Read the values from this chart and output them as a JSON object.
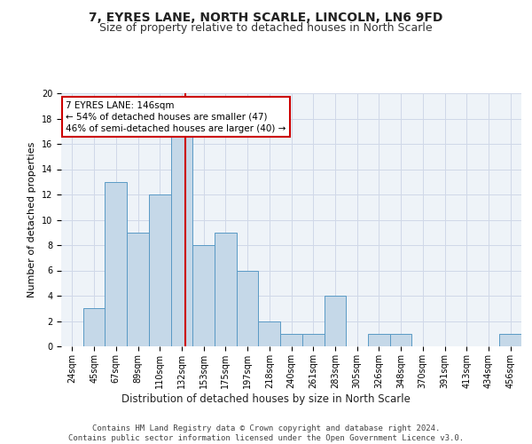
{
  "title1": "7, EYRES LANE, NORTH SCARLE, LINCOLN, LN6 9FD",
  "title2": "Size of property relative to detached houses in North Scarle",
  "xlabel": "Distribution of detached houses by size in North Scarle",
  "ylabel": "Number of detached properties",
  "categories": [
    "24sqm",
    "45sqm",
    "67sqm",
    "89sqm",
    "110sqm",
    "132sqm",
    "153sqm",
    "175sqm",
    "197sqm",
    "218sqm",
    "240sqm",
    "261sqm",
    "283sqm",
    "305sqm",
    "326sqm",
    "348sqm",
    "370sqm",
    "391sqm",
    "413sqm",
    "434sqm",
    "456sqm"
  ],
  "values": [
    0,
    3,
    13,
    9,
    12,
    17,
    8,
    9,
    6,
    2,
    1,
    1,
    4,
    0,
    1,
    1,
    0,
    0,
    0,
    0,
    1
  ],
  "bar_color": "#c5d8e8",
  "bar_edge_color": "#5a9ac5",
  "vline_color": "#cc0000",
  "annotation_text": "7 EYRES LANE: 146sqm\n← 54% of detached houses are smaller (47)\n46% of semi-detached houses are larger (40) →",
  "annotation_box_color": "#ffffff",
  "annotation_box_edge": "#cc0000",
  "ylim": [
    0,
    20
  ],
  "yticks": [
    0,
    2,
    4,
    6,
    8,
    10,
    12,
    14,
    16,
    18,
    20
  ],
  "grid_color": "#d0d8e8",
  "background_color": "#eef3f8",
  "footer_text": "Contains HM Land Registry data © Crown copyright and database right 2024.\nContains public sector information licensed under the Open Government Licence v3.0.",
  "title1_fontsize": 10,
  "title2_fontsize": 9,
  "xlabel_fontsize": 8.5,
  "ylabel_fontsize": 8,
  "tick_fontsize": 7,
  "footer_fontsize": 6.5,
  "annot_fontsize": 7.5
}
